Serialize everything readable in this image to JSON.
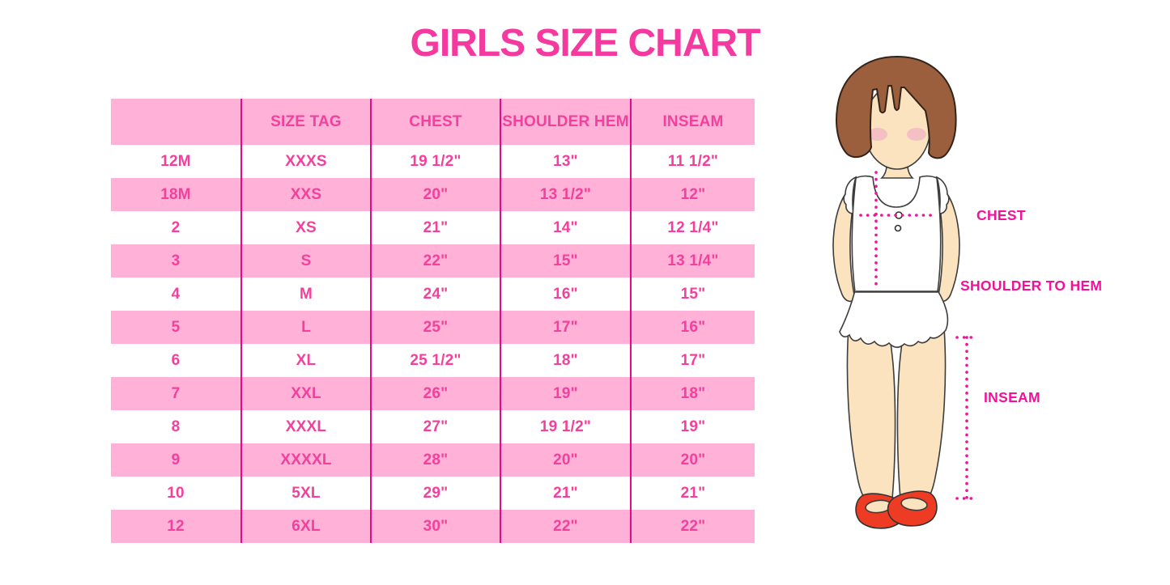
{
  "title": "GIRLS SIZE CHART",
  "chart_data": {
    "type": "table",
    "title": "GIRLS SIZE CHART",
    "columns": [
      "",
      "SIZE TAG",
      "CHEST",
      "SHOULDER HEM",
      "INSEAM"
    ],
    "rows": [
      [
        "12M",
        "XXXS",
        "19 1/2\"",
        "13\"",
        "11 1/2\""
      ],
      [
        "18M",
        "XXS",
        "20\"",
        "13 1/2\"",
        "12\""
      ],
      [
        "2",
        "XS",
        "21\"",
        "14\"",
        "12 1/4\""
      ],
      [
        "3",
        "S",
        "22\"",
        "15\"",
        "13 1/4\""
      ],
      [
        "4",
        "M",
        "24\"",
        "16\"",
        "15\""
      ],
      [
        "5",
        "L",
        "25\"",
        "17\"",
        "16\""
      ],
      [
        "6",
        "XL",
        "25 1/2\"",
        "18\"",
        "17\""
      ],
      [
        "7",
        "XXL",
        "26\"",
        "19\"",
        "18\""
      ],
      [
        "8",
        "XXXL",
        "27\"",
        "19 1/2\"",
        "19\""
      ],
      [
        "9",
        "XXXXL",
        "28\"",
        "20\"",
        "20\""
      ],
      [
        "10",
        "5XL",
        "29\"",
        "21\"",
        "21\""
      ],
      [
        "12",
        "6XL",
        "30\"",
        "22\"",
        "22\""
      ]
    ],
    "row_stripe_pattern": "header pink, then alternating white/pink starting white",
    "grid": "4 internal magenta vertical column separators, no horizontal lines, no outer border"
  },
  "diagram": {
    "description": "cartoon girl with bob haircut, white sleeveless ruffled top and red shoes, with dotted measurement guides",
    "labels": {
      "chest": "CHEST",
      "shoulder_to_hem": "SHOULDER TO HEM",
      "inseam": "INSEAM"
    }
  },
  "colors": {
    "title_pink": "#F4399F",
    "text_pink": "#F2419C",
    "row_pink": "#FFB1D8",
    "line_magenta": "#E9078C",
    "label_magenta": "#F2119B",
    "hair_brown": "#9C5F3E",
    "skin": "#FAE3BE",
    "shoe_red": "#EE3C24"
  }
}
